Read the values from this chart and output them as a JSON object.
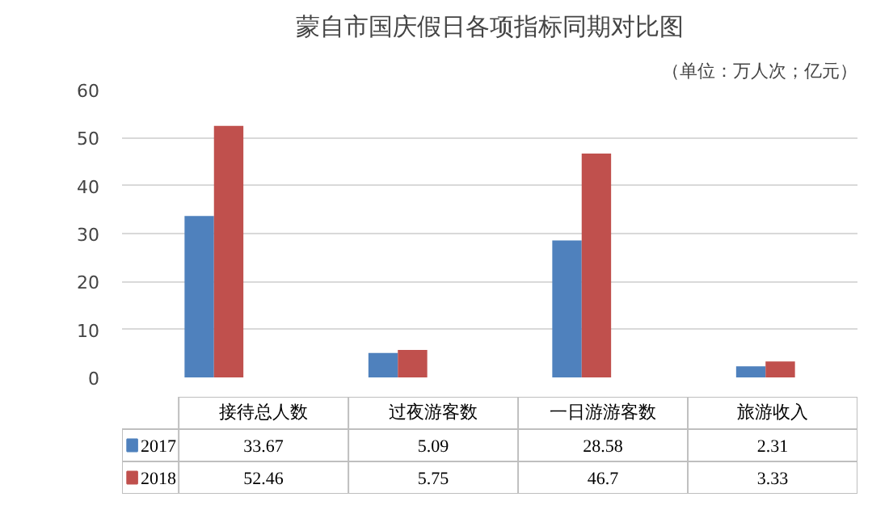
{
  "chart_data": {
    "type": "bar",
    "title": "蒙自市国庆假日各项指标同期对比图",
    "subtitle": "（单位：万人次；亿元）",
    "categories": [
      "接待总人数",
      "过夜游客数",
      "一日游游客数",
      "旅游收入"
    ],
    "series": [
      {
        "name": "2017",
        "color": "#4f81bd",
        "values": [
          33.67,
          5.09,
          28.58,
          2.31
        ]
      },
      {
        "name": "2018",
        "color": "#c0504d",
        "values": [
          52.46,
          5.75,
          46.7,
          3.33
        ]
      }
    ],
    "ylim": [
      0,
      60
    ],
    "yticks": [
      0,
      10,
      20,
      30,
      40,
      50,
      60
    ],
    "grid": "y",
    "legend": "bottom",
    "data_labels": true
  }
}
